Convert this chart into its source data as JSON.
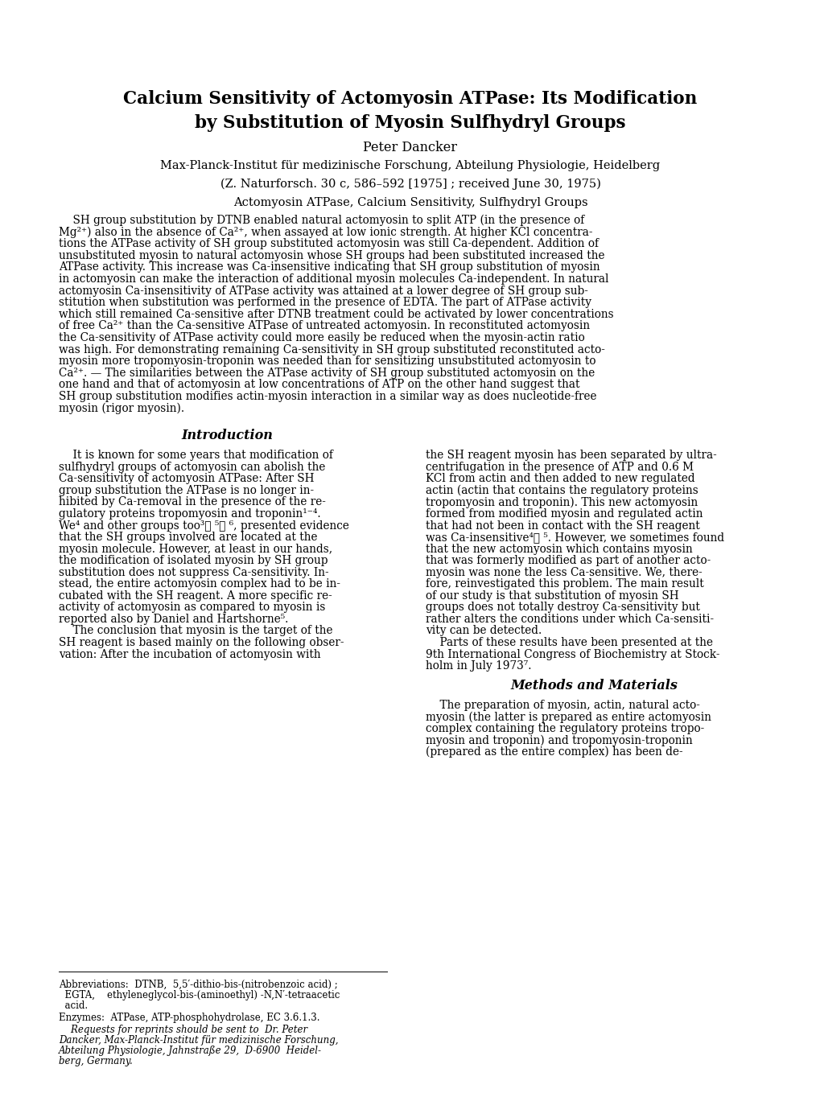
{
  "background_color": "#ffffff",
  "title_line1": "Calcium Sensitivity of Actomyosin ATPase: Its Modification",
  "title_line2": "by Substitution of Myosin Sulfhydryl Groups",
  "author": "Peter Dancker",
  "institution": "Max-Planck-Institut für medizinische Forschung, Abteilung Physiologie, Heidelberg",
  "journal_ref": "(Z. Naturforsch. 30 c, 586–592 [1975] ; received June 30, 1975)",
  "keywords": "Actomyosin ATPase, Calcium Sensitivity, Sulfhydryl Groups",
  "abstract_lines": [
    "    SH group substitution by DTNB enabled natural actomyosin to split ATP (in the presence of",
    "Mg²⁺) also in the absence of Ca²⁺, when assayed at low ionic strength. At higher KCl concentra-",
    "tions the ATPase activity of SH group substituted actomyosin was still Ca-dependent. Addition of",
    "unsubstituted myosin to natural actomyosin whose SH groups had been substituted increased the",
    "ATPase activity. This increase was Ca-insensitive indicating that SH group substitution of myosin",
    "in actomyosin can make the interaction of additional myosin molecules Ca-independent. In natural",
    "actomyosin Ca-insensitivity of ATPase activity was attained at a lower degree of SH group sub-",
    "stitution when substitution was performed in the presence of EDTA. The part of ATPase activity",
    "which still remained Ca-sensitive after DTNB treatment could be activated by lower concentrations",
    "of free Ca²⁺ than the Ca-sensitive ATPase of untreated actomyosin. In reconstituted actomyosin",
    "the Ca-sensitivity of ATPase activity could more easily be reduced when the myosin-actin ratio",
    "was high. For demonstrating remaining Ca-sensitivity in SH group substituted reconstituted acto-",
    "myosin more tropomyosin-troponin was needed than for sensitizing unsubstituted actomyosin to",
    "Ca²⁺. — The similarities between the ATPase activity of SH group substituted actomyosin on the",
    "one hand and that of actomyosin at low concentrations of ATP on the other hand suggest that",
    "SH group substitution modifies actin-myosin interaction in a similar way as does nucleotide-free",
    "myosin (rigor myosin)."
  ],
  "intro_title": "Introduction",
  "intro_left_lines": [
    "    It is known for some years that modification of",
    "sulfhydryl groups of actomyosin can abolish the",
    "Ca-sensitivity of actomyosin ATPase: After SH",
    "group substitution the ATPase is no longer in-",
    "hibited by Ca-removal in the presence of the re-",
    "gulatory proteins tropomyosin and troponin¹⁻⁴.",
    "We⁴ and other groups too³ⰻ ⁵ⰻ ⁶, presented evidence",
    "that the SH groups involved are located at the",
    "myosin molecule. However, at least in our hands,",
    "the modification of isolated myosin by SH group",
    "substitution does not suppress Ca-sensitivity. In-",
    "stead, the entire actomyosin complex had to be in-",
    "cubated with the SH reagent. A more specific re-",
    "activity of actomyosin as compared to myosin is",
    "reported also by Daniel and Hartshorne⁵.",
    "    The conclusion that myosin is the target of the",
    "SH reagent is based mainly on the following obser-",
    "vation: After the incubation of actomyosin with"
  ],
  "intro_right_lines": [
    "the SH reagent myosin has been separated by ultra-",
    "centrifugation in the presence of ATP and 0.6 M",
    "KCl from actin and then added to new regulated",
    "actin (actin that contains the regulatory proteins",
    "tropomyosin and troponin). This new actomyosin",
    "formed from modified myosin and regulated actin",
    "that had not been in contact with the SH reagent",
    "was Ca-insensitive⁴ⰻ ⁵. However, we sometimes found",
    "that the new actomyosin which contains myosin",
    "that was formerly modified as part of another acto-",
    "myosin was none the less Ca-sensitive. We, there-",
    "fore, reinvestigated this problem. The main result",
    "of our study is that substitution of myosin SH",
    "groups does not totally destroy Ca-sensitivity but",
    "rather alters the conditions under which Ca-sensiti-",
    "vity can be detected.",
    "    Parts of these results have been presented at the",
    "9th International Congress of Biochemistry at Stock-",
    "holm in July 1973⁷."
  ],
  "methods_title": "Methods and Materials",
  "methods_right_lines": [
    "    The preparation of myosin, actin, natural acto-",
    "myosin (the latter is prepared as entire actomyosin",
    "complex containing the regulatory proteins tropo-",
    "myosin and troponin) and tropomyosin-troponin",
    "(prepared as the entire complex) has been de-"
  ],
  "footnote_abbrev_lines": [
    "Abbreviations:  DTNB,  5,5′-dithio-bis-(nitrobenzoic acid) ;",
    "  EGTA,    ethyleneglycol-bis-(aminoethyl) -N,N′-tetraacetic",
    "  acid."
  ],
  "footnote_enzymes_lines": [
    "Enzymes:  ATPase, ATP-phosphohydrolase, EC 3.6.1.3."
  ],
  "footnote_requests_lines": [
    "    Requests for reprints should be sent to  Dr. Peter",
    "Dancker, Max-Planck-Institut für medizinische Forschung,",
    "Abteilung Physiologie, Jahnstraße 29,  D-6900  Heidel-",
    "berg, Germany."
  ]
}
